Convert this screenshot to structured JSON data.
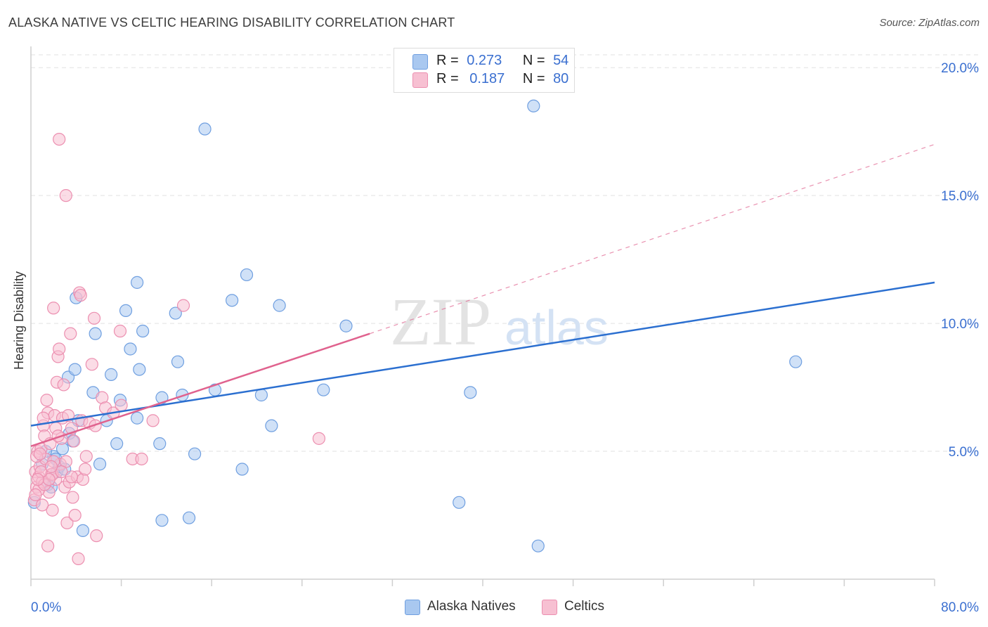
{
  "title": "ALASKA NATIVE VS CELTIC HEARING DISABILITY CORRELATION CHART",
  "source": "Source: ZipAtlas.com",
  "watermark": {
    "zip": "ZIP",
    "atlas": "atlas"
  },
  "legend": {
    "r_label": "R =",
    "n_label": "N =",
    "items": [
      {
        "r": "0.273",
        "n": "54",
        "color": "#a9c8f0",
        "border": "#6f9fe0"
      },
      {
        "r": "0.187",
        "n": "80",
        "color": "#f7c0d2",
        "border": "#ec8fb0"
      }
    ]
  },
  "bottom_legend": [
    {
      "label": "Alaska Natives",
      "color": "#a9c8f0",
      "border": "#6f9fe0"
    },
    {
      "label": "Celtics",
      "color": "#f7c0d2",
      "border": "#ec8fb0"
    }
  ],
  "chart_data": {
    "type": "scatter",
    "title": "ALASKA NATIVE VS CELTIC HEARING DISABILITY CORRELATION CHART",
    "xlabel": "",
    "ylabel": "Hearing Disability",
    "xlim": [
      0,
      80
    ],
    "ylim": [
      0,
      20.5
    ],
    "x_tick_labels": [
      "0.0%",
      "80.0%"
    ],
    "y_ticks": [
      5,
      10,
      15,
      20
    ],
    "y_tick_labels": [
      "5.0%",
      "10.0%",
      "15.0%",
      "20.0%"
    ],
    "grid": true,
    "series": [
      {
        "name": "Alaska Natives",
        "color": "#6f9fe0",
        "fill": "#a9c8f0",
        "line_color": "#2b6fd0",
        "trend": {
          "x0": 0,
          "y0": 6.0,
          "x1": 80,
          "y1": 11.6,
          "dashed_x1": null
        },
        "points": [
          [
            0.3,
            3.0
          ],
          [
            1.0,
            4.5
          ],
          [
            1.5,
            3.7
          ],
          [
            2.0,
            4.8
          ],
          [
            2.3,
            4.2
          ],
          [
            2.8,
            5.1
          ],
          [
            3.3,
            7.9
          ],
          [
            3.4,
            5.7
          ],
          [
            3.7,
            5.4
          ],
          [
            3.9,
            8.2
          ],
          [
            4.2,
            6.2
          ],
          [
            5.7,
            9.6
          ],
          [
            5.5,
            7.3
          ],
          [
            6.1,
            4.5
          ],
          [
            6.7,
            6.2
          ],
          [
            7.1,
            8.0
          ],
          [
            7.6,
            5.3
          ],
          [
            7.9,
            7.0
          ],
          [
            8.8,
            9.0
          ],
          [
            8.4,
            10.5
          ],
          [
            9.4,
            6.3
          ],
          [
            9.6,
            8.2
          ],
          [
            9.9,
            9.7
          ],
          [
            11.6,
            7.1
          ],
          [
            11.4,
            5.3
          ],
          [
            11.6,
            2.3
          ],
          [
            12.8,
            10.4
          ],
          [
            13.0,
            8.5
          ],
          [
            13.4,
            7.2
          ],
          [
            14.0,
            2.4
          ],
          [
            14.5,
            4.9
          ],
          [
            15.4,
            17.6
          ],
          [
            16.3,
            7.4
          ],
          [
            17.8,
            10.9
          ],
          [
            18.7,
            4.3
          ],
          [
            19.1,
            11.9
          ],
          [
            20.4,
            7.2
          ],
          [
            21.3,
            6.0
          ],
          [
            22.0,
            10.7
          ],
          [
            25.9,
            7.4
          ],
          [
            27.9,
            9.9
          ],
          [
            37.9,
            3.0
          ],
          [
            38.9,
            7.3
          ],
          [
            44.5,
            18.5
          ],
          [
            44.9,
            1.3
          ],
          [
            67.7,
            8.5
          ],
          [
            1.8,
            3.6
          ],
          [
            4.6,
            1.9
          ],
          [
            2.5,
            4.4
          ],
          [
            4.0,
            11.0
          ],
          [
            9.4,
            11.6
          ],
          [
            3.0,
            4.3
          ],
          [
            1.3,
            5.0
          ],
          [
            2.2,
            4.7
          ]
        ]
      },
      {
        "name": "Celtics",
        "color": "#ec8fb0",
        "fill": "#f7c0d2",
        "line_color": "#e0628e",
        "trend": {
          "x0": 0,
          "y0": 5.2,
          "x1": 30,
          "y1": 9.6,
          "dashed_x1": 80,
          "dashed_y1": 17.0
        },
        "points": [
          [
            0.3,
            3.1
          ],
          [
            0.4,
            4.2
          ],
          [
            0.5,
            3.6
          ],
          [
            0.6,
            5.0
          ],
          [
            0.7,
            4.0
          ],
          [
            0.8,
            4.4
          ],
          [
            0.9,
            5.1
          ],
          [
            1.0,
            3.8
          ],
          [
            1.1,
            6.0
          ],
          [
            1.2,
            5.6
          ],
          [
            1.3,
            4.7
          ],
          [
            1.4,
            7.0
          ],
          [
            1.5,
            6.5
          ],
          [
            1.6,
            3.4
          ],
          [
            1.7,
            5.3
          ],
          [
            1.8,
            4.1
          ],
          [
            1.9,
            2.7
          ],
          [
            2.0,
            10.6
          ],
          [
            2.1,
            6.4
          ],
          [
            2.2,
            3.9
          ],
          [
            2.3,
            7.7
          ],
          [
            2.4,
            8.7
          ],
          [
            2.5,
            9.0
          ],
          [
            2.6,
            4.5
          ],
          [
            2.7,
            5.5
          ],
          [
            2.8,
            6.3
          ],
          [
            2.9,
            7.6
          ],
          [
            3.0,
            3.6
          ],
          [
            3.1,
            4.6
          ],
          [
            3.2,
            2.2
          ],
          [
            3.3,
            6.4
          ],
          [
            3.4,
            3.8
          ],
          [
            3.5,
            9.6
          ],
          [
            3.6,
            5.9
          ],
          [
            3.7,
            3.2
          ],
          [
            3.8,
            5.4
          ],
          [
            3.9,
            2.5
          ],
          [
            4.1,
            4.0
          ],
          [
            4.3,
            11.2
          ],
          [
            4.4,
            11.1
          ],
          [
            4.5,
            6.2
          ],
          [
            4.6,
            3.9
          ],
          [
            4.8,
            4.3
          ],
          [
            4.9,
            4.8
          ],
          [
            5.2,
            6.1
          ],
          [
            5.4,
            8.4
          ],
          [
            5.6,
            10.2
          ],
          [
            5.7,
            6.0
          ],
          [
            5.8,
            1.7
          ],
          [
            6.3,
            7.1
          ],
          [
            6.6,
            6.7
          ],
          [
            7.3,
            6.5
          ],
          [
            7.9,
            9.7
          ],
          [
            8.0,
            6.8
          ],
          [
            9.0,
            4.7
          ],
          [
            9.8,
            4.7
          ],
          [
            10.8,
            6.2
          ],
          [
            13.5,
            10.7
          ],
          [
            25.5,
            5.5
          ],
          [
            2.5,
            17.2
          ],
          [
            3.1,
            15.0
          ],
          [
            0.5,
            4.8
          ],
          [
            1.0,
            2.9
          ],
          [
            1.5,
            1.3
          ],
          [
            0.7,
            3.5
          ],
          [
            1.9,
            4.1
          ],
          [
            2.2,
            5.9
          ],
          [
            0.8,
            4.9
          ],
          [
            1.2,
            3.7
          ],
          [
            2.7,
            4.2
          ],
          [
            1.6,
            3.9
          ],
          [
            2.0,
            4.6
          ],
          [
            0.9,
            4.2
          ],
          [
            4.2,
            0.8
          ],
          [
            0.4,
            3.3
          ],
          [
            1.1,
            6.3
          ],
          [
            3.6,
            4.0
          ],
          [
            0.6,
            3.9
          ],
          [
            2.4,
            5.6
          ],
          [
            1.8,
            4.4
          ]
        ]
      }
    ]
  }
}
